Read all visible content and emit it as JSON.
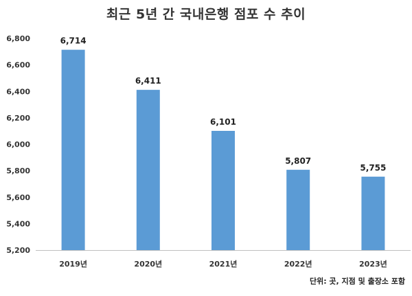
{
  "title": "최근 5년 간 국내은행 점포 수 추이",
  "note": "단위: 곳, 지점 및 출장소 포함",
  "colors": {
    "bar": "#5b9bd5",
    "axis": "#bfbfbf"
  },
  "chart_data": {
    "type": "bar",
    "title": "최근 5년 간 국내은행 점포 수 추이",
    "categories": [
      "2019년",
      "2020년",
      "2021년",
      "2022년",
      "2023년"
    ],
    "values": [
      6714,
      6411,
      6101,
      5807,
      5755
    ],
    "value_labels": [
      "6,714",
      "6,411",
      "6,101",
      "5,807",
      "5,755"
    ],
    "ylim": [
      5200,
      6800
    ],
    "yticks": [
      "5,200",
      "5,400",
      "5,600",
      "5,800",
      "6,000",
      "6,200",
      "6,400",
      "6,600",
      "6,800"
    ],
    "ytick_values": [
      5200,
      5400,
      5600,
      5800,
      6000,
      6200,
      6400,
      6600,
      6800
    ],
    "grid": false,
    "xlabel": "",
    "ylabel": ""
  }
}
